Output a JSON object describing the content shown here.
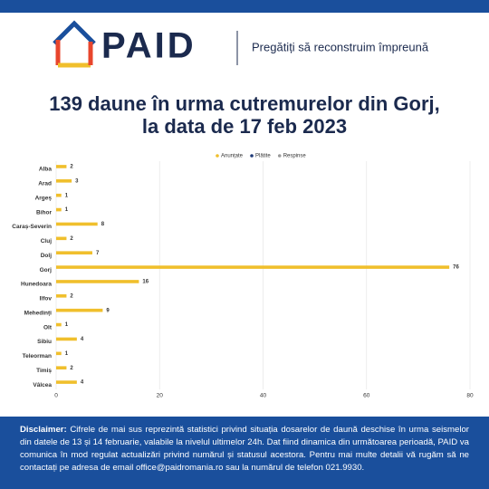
{
  "header": {
    "brand": "PAID",
    "tagline": "Pregătiți să reconstruim împreună"
  },
  "chart_data": {
    "type": "hbar",
    "title": "139 daune în urma cutremurelor din Gorj,",
    "subtitle": "la data de 17 feb 2023",
    "categories": [
      "Alba",
      "Arad",
      "Argeș",
      "Bihor",
      "Caraș-Severin",
      "Cluj",
      "Dolj",
      "Gorj",
      "Hunedoara",
      "Ilfov",
      "Mehedinți",
      "Olt",
      "Sibiu",
      "Teleorman",
      "Timiș",
      "Vâlcea"
    ],
    "series": [
      {
        "name": "Anunțate",
        "color": "#f0bf2c",
        "values": [
          2,
          3,
          1,
          1,
          8,
          2,
          7,
          76,
          16,
          2,
          9,
          1,
          4,
          1,
          2,
          4
        ]
      }
    ],
    "legend": [
      {
        "name": "Anunțate",
        "color": "#f0bf2c"
      },
      {
        "name": "Plătite",
        "color": "#1f3a78"
      },
      {
        "name": "Respinse",
        "color": "#9a9a9a"
      }
    ],
    "xlim": [
      0,
      80
    ],
    "xticks": [
      0,
      20,
      40,
      60,
      80
    ],
    "grid": true
  },
  "footer": {
    "label": "Disclaimer:",
    "text": "Cifrele de mai sus reprezintă statistici privind situația dosarelor de daună deschise în urma seismelor din datele de 13 și 14 februarie, valabile la nivelul ultimelor 24h. Dat fiind dinamica din următoarea perioadă, PAID va comunica în mod regulat actualizări privind numărul și statusul acestora. Pentru mai multe detalii vă rugăm să ne contactați pe adresa de email office@paidromania.ro sau la numărul de telefon 021.9930."
  }
}
